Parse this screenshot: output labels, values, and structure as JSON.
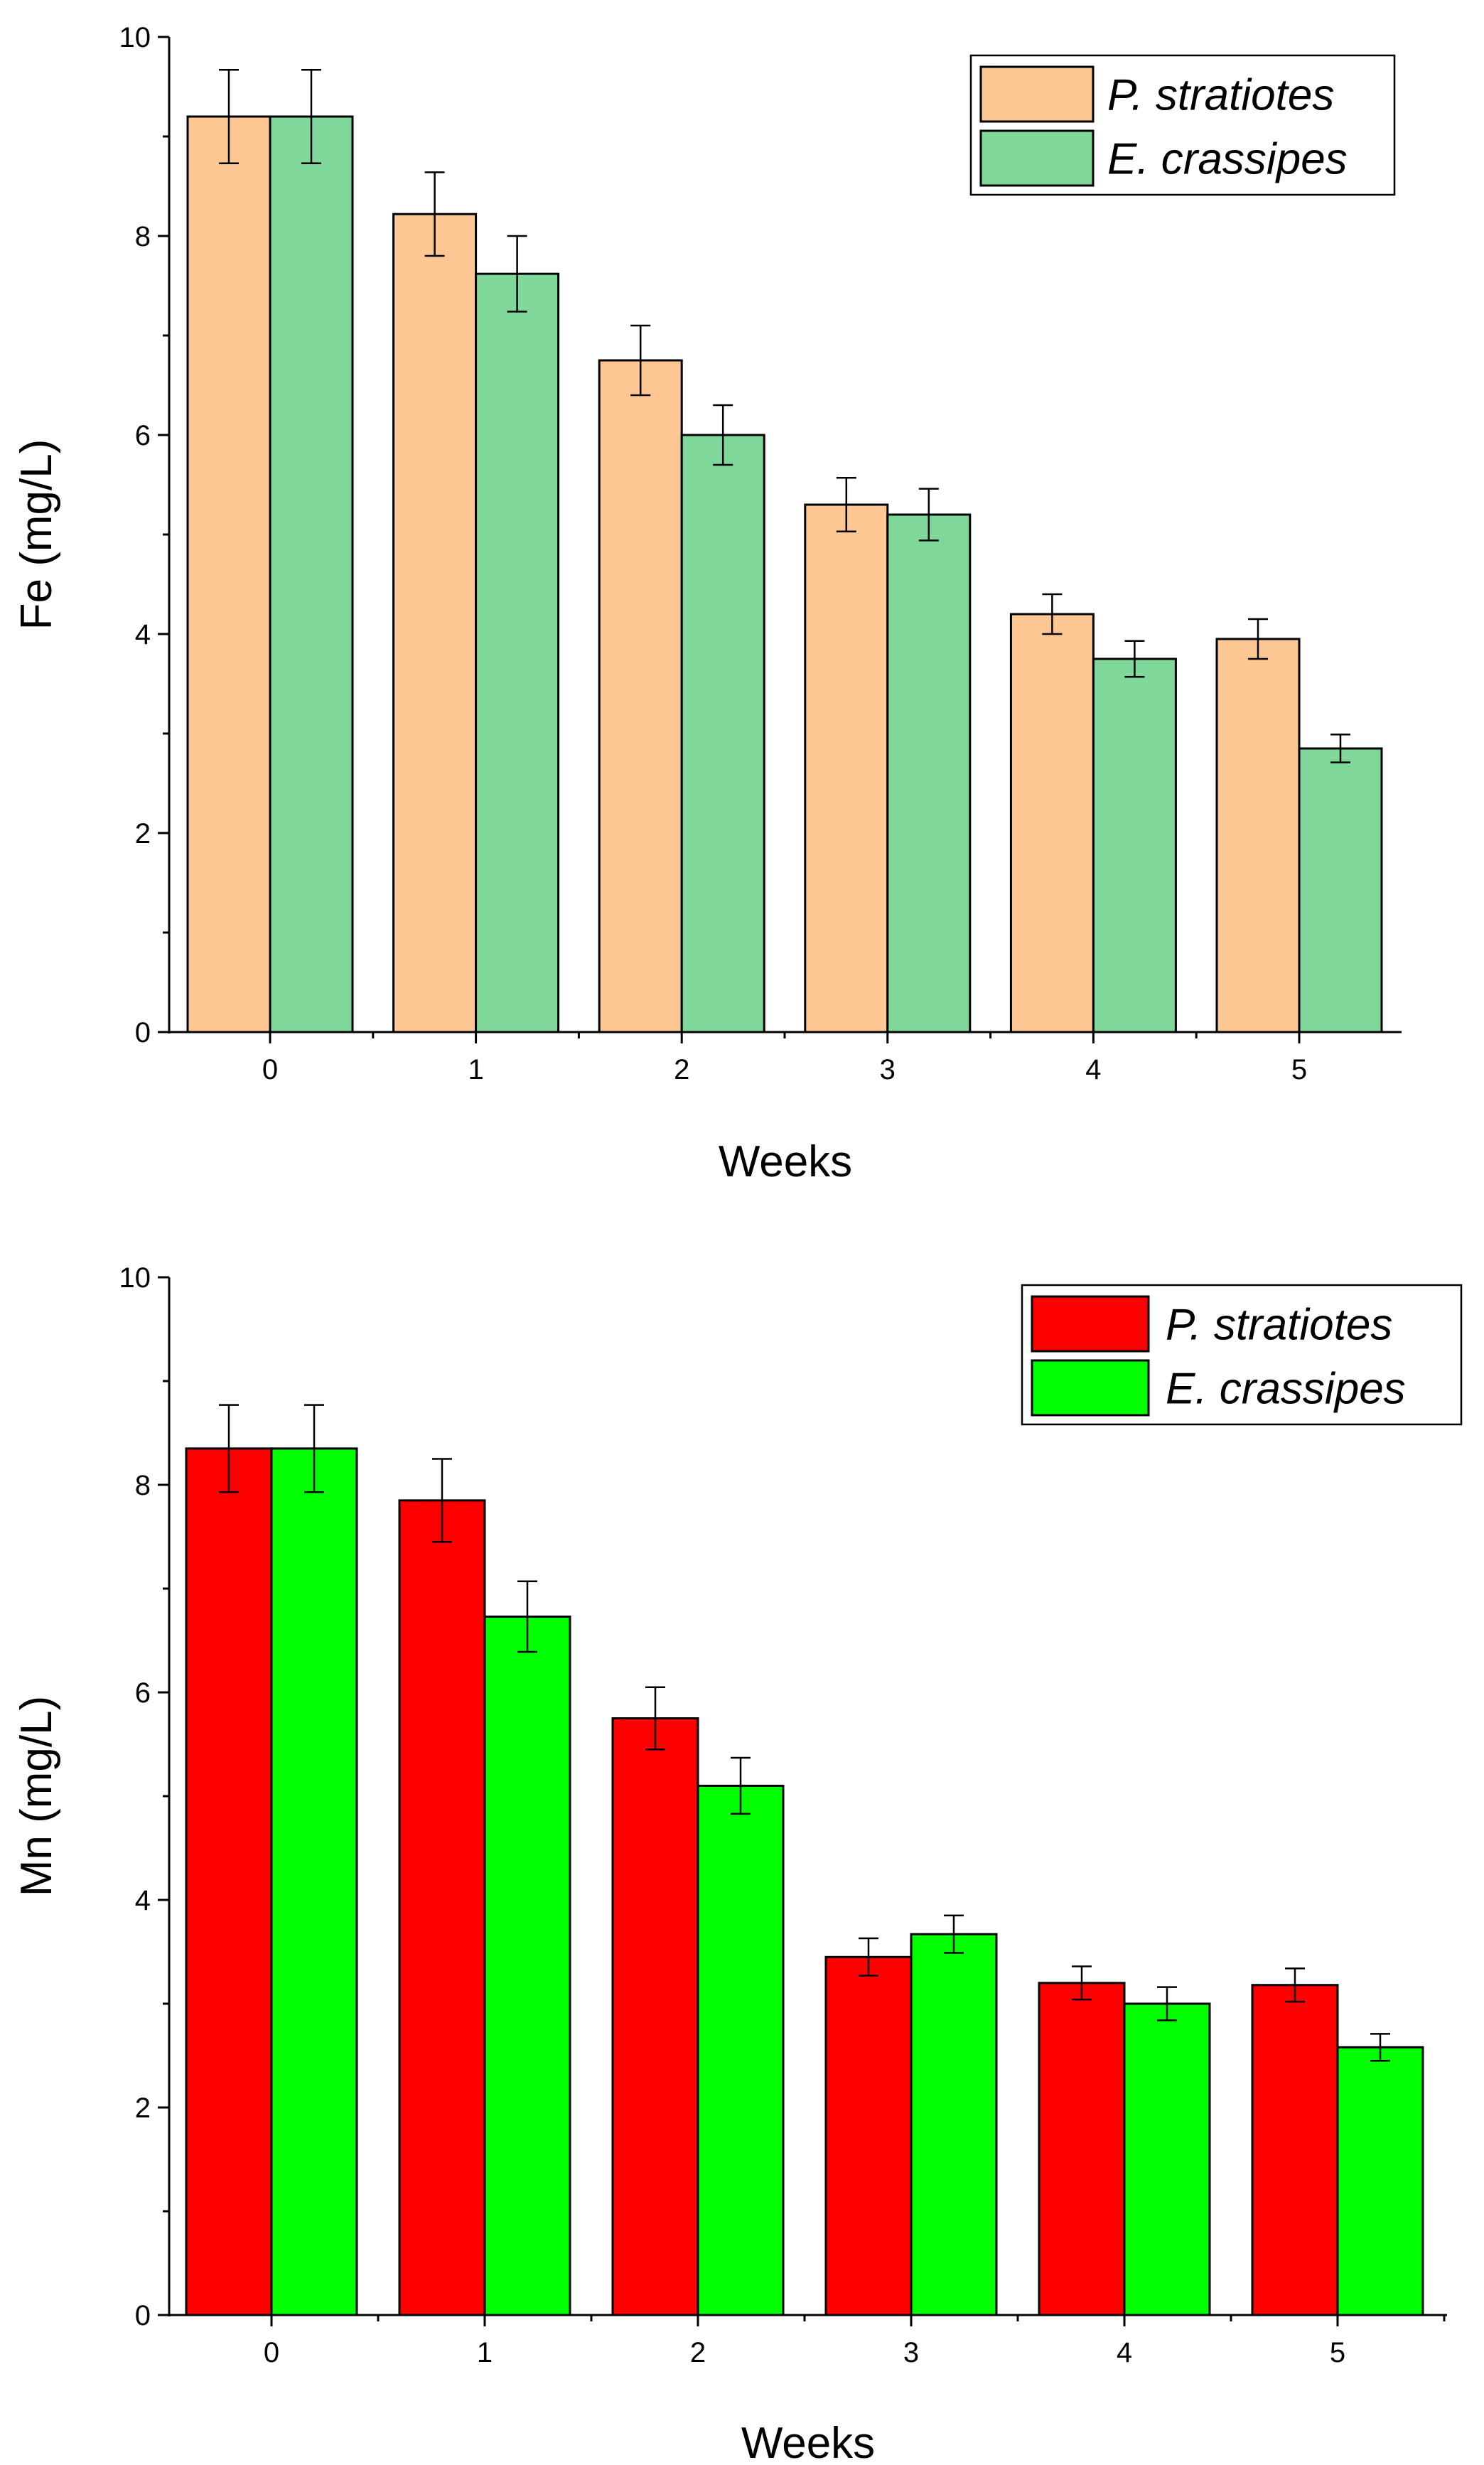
{
  "chart_data": [
    {
      "type": "bar",
      "title": "",
      "xlabel": "Weeks",
      "ylabel": "Fe (mg/L)",
      "categories": [
        "0",
        "1",
        "2",
        "3",
        "4",
        "5"
      ],
      "ylim": [
        0,
        10
      ],
      "yticks": [
        "0",
        "2",
        "4",
        "6",
        "8",
        "10"
      ],
      "legend_position": "top-right",
      "series": [
        {
          "name": "P. stratiotes",
          "color": "#FDC794",
          "values": [
            9.2,
            8.22,
            6.75,
            5.3,
            4.2,
            3.95
          ],
          "errors": [
            0.47,
            0.42,
            0.35,
            0.27,
            0.2,
            0.2
          ]
        },
        {
          "name": "E. crassipes",
          "color": "#7FD899",
          "values": [
            9.2,
            7.62,
            6.0,
            5.2,
            3.75,
            2.85
          ],
          "errors": [
            0.47,
            0.38,
            0.3,
            0.26,
            0.18,
            0.14
          ]
        }
      ]
    },
    {
      "type": "bar",
      "title": "",
      "xlabel": "Weeks",
      "ylabel": "Mn (mg/L)",
      "categories": [
        "0",
        "1",
        "2",
        "3",
        "4",
        "5"
      ],
      "ylim": [
        0,
        10
      ],
      "yticks": [
        "0",
        "2",
        "4",
        "6",
        "8",
        "10"
      ],
      "legend_position": "top-right",
      "series": [
        {
          "name": "P. stratiotes",
          "color": "#FF0000",
          "values": [
            8.35,
            7.85,
            5.75,
            3.45,
            3.2,
            3.18
          ],
          "errors": [
            0.42,
            0.4,
            0.3,
            0.18,
            0.16,
            0.16
          ]
        },
        {
          "name": "E. crassipes",
          "color": "#00FF00",
          "values": [
            8.35,
            6.73,
            5.1,
            3.67,
            3.0,
            2.58
          ],
          "errors": [
            0.42,
            0.34,
            0.27,
            0.18,
            0.16,
            0.13
          ]
        }
      ]
    }
  ]
}
